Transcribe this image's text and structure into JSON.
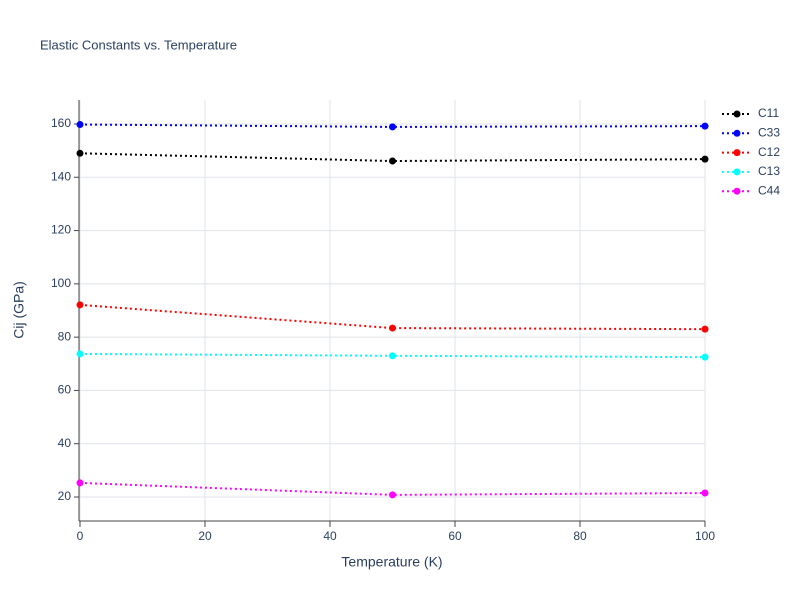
{
  "chart_data": {
    "type": "line",
    "title": "Elastic Constants vs. Temperature",
    "x_label": "Temperature (K)",
    "y_label": "Cij (GPa)",
    "x": [
      0,
      50,
      100
    ],
    "series": [
      {
        "name": "C11",
        "color": "#000000",
        "values": [
          149.0,
          146.1,
          146.8
        ]
      },
      {
        "name": "C33",
        "color": "#0000ff",
        "values": [
          159.8,
          158.9,
          159.2
        ]
      },
      {
        "name": "C12",
        "color": "#ff0000",
        "values": [
          92.1,
          83.4,
          83.0
        ]
      },
      {
        "name": "C13",
        "color": "#00ffff",
        "values": [
          73.7,
          73.0,
          72.5
        ]
      },
      {
        "name": "C44",
        "color": "#ff00ff",
        "values": [
          25.3,
          20.8,
          21.5
        ]
      }
    ],
    "xlim": [
      0,
      100
    ],
    "xticks": [
      0,
      20,
      40,
      60,
      80,
      100
    ],
    "ylim": [
      11,
      169
    ],
    "yticks": [
      20,
      40,
      60,
      80,
      100,
      120,
      140,
      160
    ],
    "grid": true,
    "legend": "top-right"
  }
}
